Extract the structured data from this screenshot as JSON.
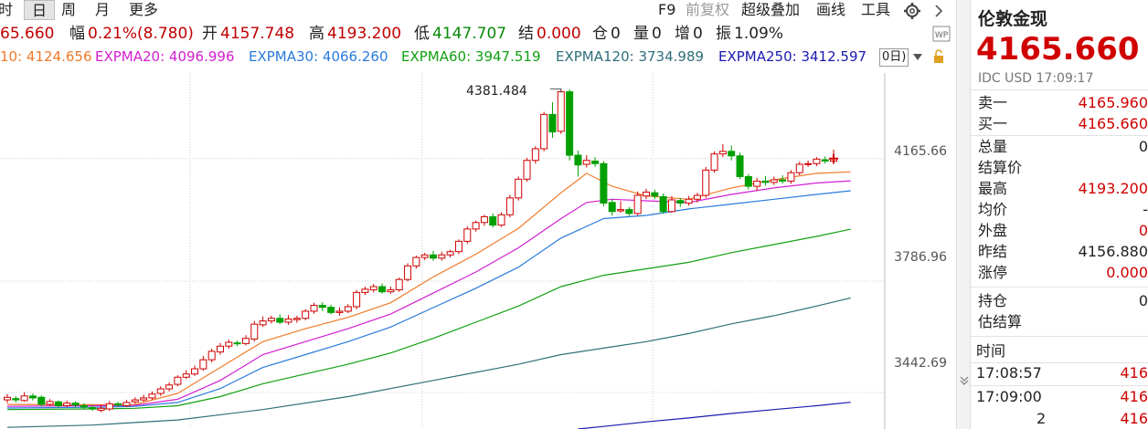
{
  "toolbar": {
    "periods": [
      "时",
      "日",
      "周",
      "月",
      "更多"
    ],
    "active": "日",
    "tools": [
      "F9",
      "前复权",
      "超级叠加",
      "画线",
      "工具"
    ]
  },
  "info": {
    "last": "65.660",
    "change_label": "幅",
    "change": "0.21%(8.780)",
    "open_label": "开",
    "open": "4157.748",
    "high_label": "高",
    "high": "4193.200",
    "low_label": "低",
    "low": "4147.707",
    "settle_label": "结",
    "settle": "0.000",
    "oi_label": "仓",
    "oi": "0",
    "vol_label": "量",
    "vol": "0",
    "inc_label": "增",
    "inc": "0",
    "amp_label": "振",
    "amp": "1.09%"
  },
  "ema_row": [
    {
      "label": "10: 4124.656",
      "color": "#f07a2a"
    },
    {
      "label": "EXPMA20: 4096.996",
      "color": "#d21fd2"
    },
    {
      "label": "EXPMA30: 4066.260",
      "color": "#2a7bdc"
    },
    {
      "label": "EXPMA60: 3947.519",
      "color": "#12a012"
    },
    {
      "label": "EXPMA120: 3734.989",
      "color": "#2f6f7a"
    },
    {
      "label": "EXPMA250: 3412.597",
      "color": "#1a1ab0"
    }
  ],
  "ema_tail": "0日)",
  "price_ticks": [
    "4165.66",
    "3786.96",
    "3442.69"
  ],
  "peak_label": "4381.484",
  "colors": {
    "up": "#d00000",
    "down": "#00a000",
    "grid": "#cfcfcf"
  },
  "chart_data": {
    "type": "candlestick",
    "ylim": [
      3330,
      4430
    ],
    "candles": [
      [
        3420,
        3428,
        3438,
        3410
      ],
      [
        3424,
        3420,
        3432,
        3412
      ],
      [
        3418,
        3432,
        3444,
        3414
      ],
      [
        3432,
        3426,
        3440,
        3418
      ],
      [
        3428,
        3406,
        3434,
        3400
      ],
      [
        3406,
        3415,
        3422,
        3400
      ],
      [
        3414,
        3402,
        3418,
        3396
      ],
      [
        3402,
        3410,
        3418,
        3398
      ],
      [
        3410,
        3404,
        3416,
        3396
      ],
      [
        3402,
        3398,
        3410,
        3392
      ],
      [
        3396,
        3392,
        3404,
        3386
      ],
      [
        3388,
        3394,
        3404,
        3382
      ],
      [
        3392,
        3408,
        3416,
        3386
      ],
      [
        3408,
        3404,
        3414,
        3398
      ],
      [
        3402,
        3412,
        3420,
        3398
      ],
      [
        3414,
        3420,
        3428,
        3408
      ],
      [
        3420,
        3426,
        3436,
        3414
      ],
      [
        3426,
        3438,
        3446,
        3420
      ],
      [
        3440,
        3454,
        3462,
        3432
      ],
      [
        3454,
        3466,
        3474,
        3446
      ],
      [
        3468,
        3490,
        3496,
        3462
      ],
      [
        3490,
        3500,
        3512,
        3484
      ],
      [
        3500,
        3516,
        3526,
        3494
      ],
      [
        3516,
        3544,
        3556,
        3510
      ],
      [
        3544,
        3570,
        3578,
        3536
      ],
      [
        3568,
        3586,
        3596,
        3560
      ],
      [
        3586,
        3598,
        3606,
        3578
      ],
      [
        3596,
        3594,
        3604,
        3586
      ],
      [
        3594,
        3610,
        3620,
        3588
      ],
      [
        3608,
        3654,
        3664,
        3600
      ],
      [
        3652,
        3664,
        3678,
        3646
      ],
      [
        3664,
        3672,
        3680,
        3656
      ],
      [
        3672,
        3660,
        3684,
        3654
      ],
      [
        3660,
        3670,
        3682,
        3652
      ],
      [
        3668,
        3672,
        3680,
        3658
      ],
      [
        3672,
        3694,
        3700,
        3666
      ],
      [
        3694,
        3712,
        3720,
        3686
      ],
      [
        3712,
        3706,
        3722,
        3694
      ],
      [
        3706,
        3690,
        3714,
        3684
      ],
      [
        3690,
        3694,
        3706,
        3680
      ],
      [
        3694,
        3708,
        3716,
        3688
      ],
      [
        3708,
        3752,
        3760,
        3700
      ],
      [
        3752,
        3762,
        3770,
        3744
      ],
      [
        3760,
        3770,
        3778,
        3752
      ],
      [
        3770,
        3754,
        3780,
        3748
      ],
      [
        3754,
        3760,
        3770,
        3748
      ],
      [
        3760,
        3792,
        3798,
        3754
      ],
      [
        3792,
        3834,
        3842,
        3786
      ],
      [
        3834,
        3860,
        3866,
        3826
      ],
      [
        3860,
        3868,
        3874,
        3852
      ],
      [
        3868,
        3858,
        3880,
        3850
      ],
      [
        3858,
        3868,
        3878,
        3850
      ],
      [
        3868,
        3878,
        3884,
        3860
      ],
      [
        3878,
        3910,
        3916,
        3870
      ],
      [
        3910,
        3948,
        3956,
        3902
      ],
      [
        3948,
        3968,
        3974,
        3940
      ],
      [
        3968,
        3986,
        3992,
        3958
      ],
      [
        3986,
        3960,
        3996,
        3952
      ],
      [
        3960,
        3992,
        4000,
        3954
      ],
      [
        3992,
        4044,
        4054,
        3984
      ],
      [
        4044,
        4102,
        4110,
        4036
      ],
      [
        4102,
        4160,
        4168,
        4094
      ],
      [
        4160,
        4196,
        4204,
        4150
      ],
      [
        4196,
        4302,
        4310,
        4188
      ],
      [
        4302,
        4248,
        4340,
        4230
      ],
      [
        4250,
        4372,
        4381,
        4242
      ],
      [
        4372,
        4176,
        4380,
        4160
      ],
      [
        4176,
        4146,
        4190,
        4110
      ],
      [
        4148,
        4160,
        4176,
        4138
      ],
      [
        4158,
        4150,
        4170,
        4140
      ],
      [
        4150,
        4028,
        4158,
        4018
      ],
      [
        4030,
        4002,
        4040,
        3990
      ],
      [
        4004,
        4008,
        4034,
        3998
      ],
      [
        4008,
        3996,
        4016,
        3988
      ],
      [
        3996,
        4052,
        4064,
        3990
      ],
      [
        4050,
        4062,
        4072,
        4040
      ],
      [
        4060,
        4050,
        4070,
        4040
      ],
      [
        4048,
        4002,
        4058,
        3996
      ],
      [
        4002,
        4038,
        4050,
        3998
      ],
      [
        4036,
        4028,
        4044,
        4016
      ],
      [
        4028,
        4040,
        4050,
        4020
      ],
      [
        4040,
        4052,
        4060,
        4030
      ],
      [
        4052,
        4130,
        4140,
        4044
      ],
      [
        4130,
        4180,
        4188,
        4122
      ],
      [
        4180,
        4188,
        4210,
        4170
      ],
      [
        4188,
        4174,
        4206,
        4160
      ],
      [
        4174,
        4110,
        4184,
        4102
      ],
      [
        4110,
        4080,
        4118,
        4070
      ],
      [
        4080,
        4096,
        4106,
        4066
      ],
      [
        4096,
        4092,
        4112,
        4082
      ],
      [
        4092,
        4100,
        4110,
        4084
      ],
      [
        4100,
        4096,
        4114,
        4088
      ],
      [
        4096,
        4122,
        4130,
        4088
      ],
      [
        4122,
        4148,
        4156,
        4114
      ],
      [
        4148,
        4150,
        4160,
        4140
      ],
      [
        4150,
        4164,
        4170,
        4142
      ],
      [
        4162,
        4158,
        4172,
        4150
      ],
      [
        4157.748,
        4165.66,
        4193.2,
        4147.707
      ]
    ],
    "lines": [
      {
        "name": "EXPMA10",
        "color": "#f07a2a",
        "points": [
          [
            0,
            3406
          ],
          [
            10,
            3405
          ],
          [
            15,
            3406
          ],
          [
            20,
            3440
          ],
          [
            25,
            3520
          ],
          [
            30,
            3600
          ],
          [
            35,
            3640
          ],
          [
            40,
            3675
          ],
          [
            45,
            3720
          ],
          [
            50,
            3800
          ],
          [
            55,
            3870
          ],
          [
            60,
            3950
          ],
          [
            65,
            4060
          ],
          [
            68,
            4120
          ],
          [
            71,
            4080
          ],
          [
            75,
            4050
          ],
          [
            80,
            4040
          ],
          [
            85,
            4075
          ],
          [
            90,
            4100
          ],
          [
            95,
            4120
          ],
          [
            99,
            4124.656
          ]
        ]
      },
      {
        "name": "EXPMA20",
        "color": "#d21fd2",
        "points": [
          [
            0,
            3400
          ],
          [
            10,
            3402
          ],
          [
            15,
            3403
          ],
          [
            20,
            3422
          ],
          [
            25,
            3480
          ],
          [
            30,
            3560
          ],
          [
            35,
            3600
          ],
          [
            40,
            3640
          ],
          [
            45,
            3685
          ],
          [
            50,
            3750
          ],
          [
            55,
            3815
          ],
          [
            60,
            3890
          ],
          [
            65,
            3980
          ],
          [
            68,
            4030
          ],
          [
            71,
            4040
          ],
          [
            75,
            4035
          ],
          [
            80,
            4030
          ],
          [
            85,
            4055
          ],
          [
            90,
            4075
          ],
          [
            95,
            4090
          ],
          [
            99,
            4096.996
          ]
        ]
      },
      {
        "name": "EXPMA30",
        "color": "#2a7bdc",
        "points": [
          [
            0,
            3395
          ],
          [
            10,
            3397
          ],
          [
            15,
            3400
          ],
          [
            20,
            3412
          ],
          [
            25,
            3455
          ],
          [
            30,
            3520
          ],
          [
            35,
            3560
          ],
          [
            40,
            3600
          ],
          [
            45,
            3645
          ],
          [
            50,
            3705
          ],
          [
            55,
            3765
          ],
          [
            60,
            3830
          ],
          [
            65,
            3920
          ],
          [
            70,
            3980
          ],
          [
            75,
            3990
          ],
          [
            80,
            4010
          ],
          [
            85,
            4025
          ],
          [
            90,
            4040
          ],
          [
            95,
            4055
          ],
          [
            99,
            4066.26
          ]
        ]
      },
      {
        "name": "EXPMA60",
        "color": "#12a012",
        "points": [
          [
            0,
            3390
          ],
          [
            10,
            3392
          ],
          [
            15,
            3394
          ],
          [
            20,
            3402
          ],
          [
            25,
            3430
          ],
          [
            30,
            3470
          ],
          [
            35,
            3500
          ],
          [
            40,
            3530
          ],
          [
            45,
            3565
          ],
          [
            50,
            3610
          ],
          [
            55,
            3660
          ],
          [
            60,
            3710
          ],
          [
            65,
            3770
          ],
          [
            70,
            3805
          ],
          [
            75,
            3825
          ],
          [
            80,
            3845
          ],
          [
            85,
            3875
          ],
          [
            90,
            3900
          ],
          [
            95,
            3925
          ],
          [
            99,
            3947.519
          ]
        ]
      },
      {
        "name": "EXPMA120",
        "color": "#2f6f7a",
        "points": [
          [
            0,
            3335
          ],
          [
            10,
            3342
          ],
          [
            20,
            3358
          ],
          [
            30,
            3390
          ],
          [
            40,
            3430
          ],
          [
            50,
            3480
          ],
          [
            60,
            3530
          ],
          [
            65,
            3560
          ],
          [
            70,
            3580
          ],
          [
            75,
            3600
          ],
          [
            80,
            3625
          ],
          [
            85,
            3655
          ],
          [
            90,
            3680
          ],
          [
            95,
            3710
          ],
          [
            99,
            3734.989
          ]
        ]
      },
      {
        "name": "EXPMA250",
        "color": "#1a1ab0",
        "points": [
          [
            67,
            3330
          ],
          [
            70,
            3338
          ],
          [
            75,
            3352
          ],
          [
            80,
            3364
          ],
          [
            85,
            3378
          ],
          [
            90,
            3390
          ],
          [
            95,
            3402
          ],
          [
            99,
            3412.597
          ]
        ]
      }
    ]
  },
  "panel": {
    "title": "伦敦金现",
    "price": "4165.660",
    "sub": "IDC  USD   17:09:17",
    "rows1": [
      {
        "label": "卖一",
        "value": "4165.960",
        "red": true
      },
      {
        "label": "买一",
        "value": "4165.660",
        "red": true
      }
    ],
    "rows2": [
      {
        "label": "总量",
        "value": "0",
        "red": false
      },
      {
        "label": "结算价",
        "value": "",
        "red": false
      },
      {
        "label": "最高",
        "value": "4193.200",
        "red": true
      },
      {
        "label": "均价",
        "value": "-",
        "red": false
      },
      {
        "label": "外盘",
        "value": "0",
        "red": true
      },
      {
        "label": "昨结",
        "value": "4156.880",
        "red": false
      },
      {
        "label": "涨停",
        "value": "0.000",
        "red": true
      }
    ],
    "rows3": [
      {
        "label": "持仓",
        "value": "0",
        "red": false
      },
      {
        "label": "估结算",
        "value": "",
        "red": false
      }
    ],
    "ticks_header": "时间",
    "ticks": [
      {
        "time": "17:08:57",
        "price": "416"
      },
      {
        "time": "17:09:00",
        "price": "416"
      },
      {
        "time": "2",
        "price": "416"
      }
    ]
  }
}
